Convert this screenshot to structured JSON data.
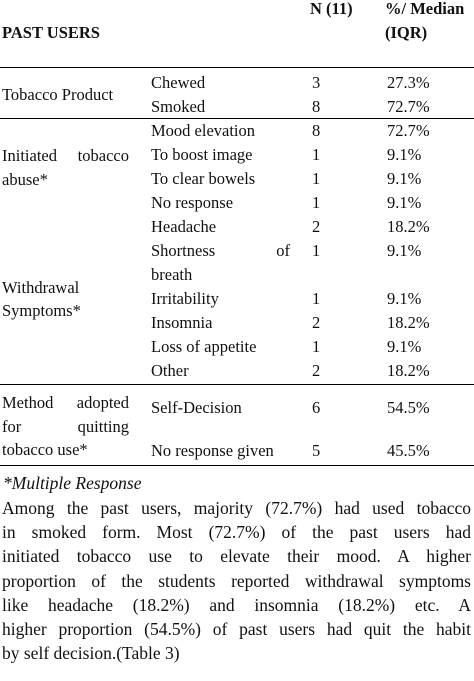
{
  "header": {
    "col1": "PAST USERS",
    "col3": "N (11)",
    "col4_line1": "%/ Median",
    "col4_line2": "(IQR)"
  },
  "groups": [
    {
      "label_lines": [
        "Tobacco Product"
      ]
    },
    {
      "label_lines": [
        "Initiated tobacco",
        "abuse*"
      ]
    },
    {
      "label_lines": [
        "Withdrawal",
        "Symptoms*"
      ]
    },
    {
      "label_lines": [
        "Method adopted",
        "for quitting",
        "tobacco use*"
      ]
    }
  ],
  "rows": [
    {
      "item": "Chewed",
      "n": "3",
      "pct": "27.3%"
    },
    {
      "item": "Smoked",
      "n": "8",
      "pct": "72.7%"
    },
    {
      "item": "Mood elevation",
      "n": "8",
      "pct": "72.7%"
    },
    {
      "item": "To boost image",
      "n": "1",
      "pct": "9.1%"
    },
    {
      "item": "To clear bowels",
      "n": "1",
      "pct": "9.1%"
    },
    {
      "item": "No response",
      "n": "1",
      "pct": "9.1%"
    },
    {
      "item": "Headache",
      "n": "2",
      "pct": "18.2%"
    },
    {
      "item": "Shortness of",
      "item2": "breath",
      "n": "1",
      "pct": "9.1%"
    },
    {
      "item": "Irritability",
      "n": "1",
      "pct": "9.1%"
    },
    {
      "item": "Insomnia",
      "n": "2",
      "pct": "18.2%"
    },
    {
      "item": "Loss of appetite",
      "n": "1",
      "pct": "9.1%"
    },
    {
      "item": "Other",
      "n": "2",
      "pct": "18.2%"
    },
    {
      "item": "Self-Decision",
      "n": "6",
      "pct": "54.5%"
    },
    {
      "item": "No response given",
      "n": "5",
      "pct": "45.5%"
    }
  ],
  "footnote": "*Multiple Response",
  "paragraph_lines": [
    "Among the past users, majority (72.7%) had used tobacco",
    "in smoked form. Most (72.7%) of the past users had",
    "initiated tobacco use to elevate their mood. A higher",
    "proportion of the students reported withdrawal symptoms",
    "like headache (18.2%) and insomnia (18.2%) etc. A",
    "higher proportion (54.5%) of past users had quit the habit",
    "by self decision.(Table 3)"
  ]
}
